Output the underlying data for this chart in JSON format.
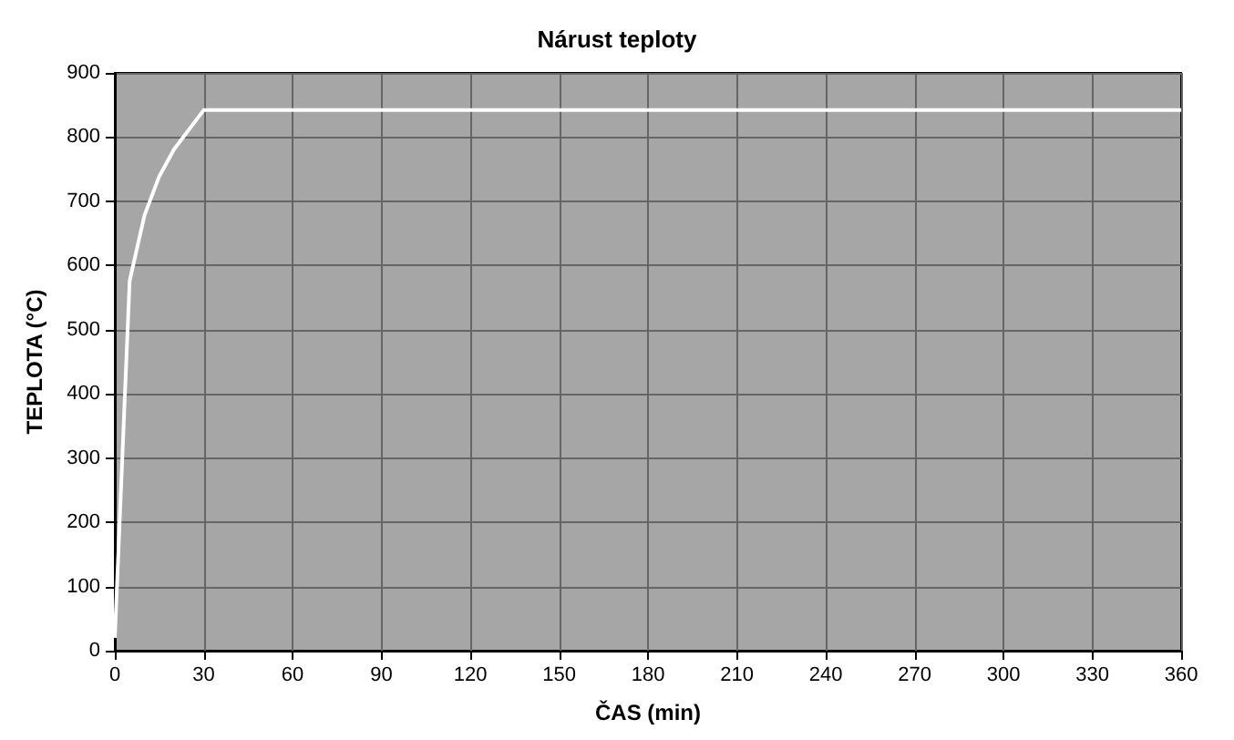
{
  "chart_data": {
    "type": "line",
    "title": "Nárust teploty",
    "xlabel": "ČAS (min)",
    "ylabel": "TEPLOTA (°C)",
    "x": [
      0,
      5,
      10,
      15,
      20,
      30,
      360
    ],
    "series": [
      {
        "color": "#ffffff",
        "values": [
          20,
          576,
          678,
          739,
          781,
          842,
          842
        ]
      }
    ],
    "xlim": [
      0,
      360
    ],
    "xticks": [
      0,
      30,
      60,
      90,
      120,
      150,
      180,
      210,
      240,
      270,
      300,
      330,
      360
    ],
    "ylim": [
      0,
      900
    ],
    "yticks": [
      0,
      100,
      200,
      300,
      400,
      500,
      600,
      700,
      800,
      900
    ],
    "grid": true,
    "marker": "none",
    "line_style": "solid"
  }
}
